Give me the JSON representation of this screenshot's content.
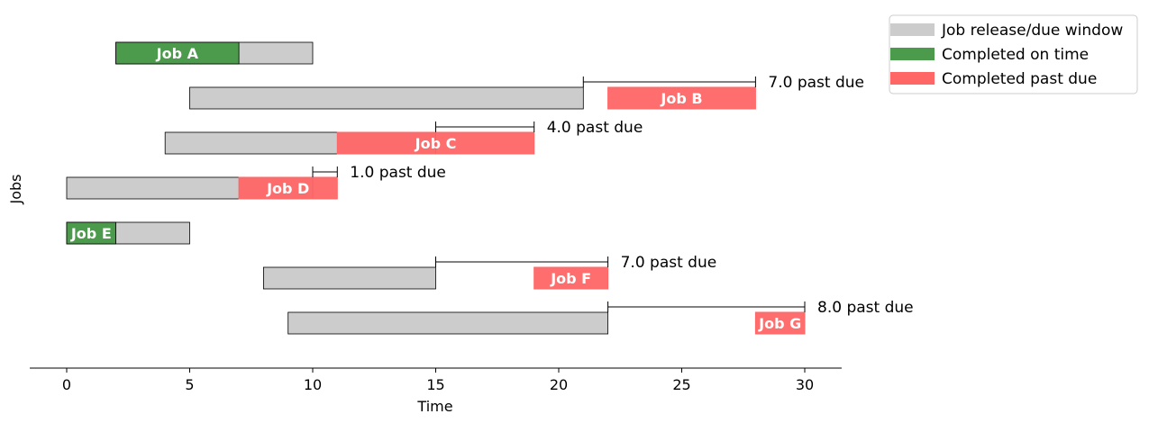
{
  "chart_data": {
    "type": "gantt",
    "xlabel": "Time",
    "ylabel": "Jobs",
    "xlim": [
      -1.5,
      31.5
    ],
    "xticks": [
      0,
      5,
      10,
      15,
      20,
      25,
      30
    ],
    "legend": {
      "placement": "top-right-outside",
      "entries": [
        {
          "label": "Job release/due window",
          "color": "#cccccc"
        },
        {
          "label": "Completed on time",
          "color": "#4c9a4c"
        },
        {
          "label": "Completed past due",
          "color": "#ff6666"
        }
      ]
    },
    "colors": {
      "window": "#cccccc",
      "on_time": "#4c9a4c",
      "past_due": "#ff6666"
    },
    "jobs": [
      {
        "label": "Job A",
        "release": 2,
        "due": 10,
        "start": 2,
        "end": 7,
        "status": "on_time",
        "annotation": ""
      },
      {
        "label": "Job B",
        "release": 5,
        "due": 21,
        "start": 22,
        "end": 28,
        "status": "past_due",
        "annotation": "7.0 past due"
      },
      {
        "label": "Job C",
        "release": 4,
        "due": 15,
        "start": 11,
        "end": 19,
        "status": "past_due",
        "annotation": "4.0 past due"
      },
      {
        "label": "Job D",
        "release": 0,
        "due": 10,
        "start": 7,
        "end": 11,
        "status": "past_due",
        "annotation": "1.0 past due"
      },
      {
        "label": "Job E",
        "release": 0,
        "due": 5,
        "start": 0,
        "end": 2,
        "status": "on_time",
        "annotation": ""
      },
      {
        "label": "Job F",
        "release": 8,
        "due": 15,
        "start": 19,
        "end": 22,
        "status": "past_due",
        "annotation": "7.0 past due"
      },
      {
        "label": "Job G",
        "release": 9,
        "due": 22,
        "start": 28,
        "end": 30,
        "status": "past_due",
        "annotation": "8.0 past due"
      }
    ]
  }
}
